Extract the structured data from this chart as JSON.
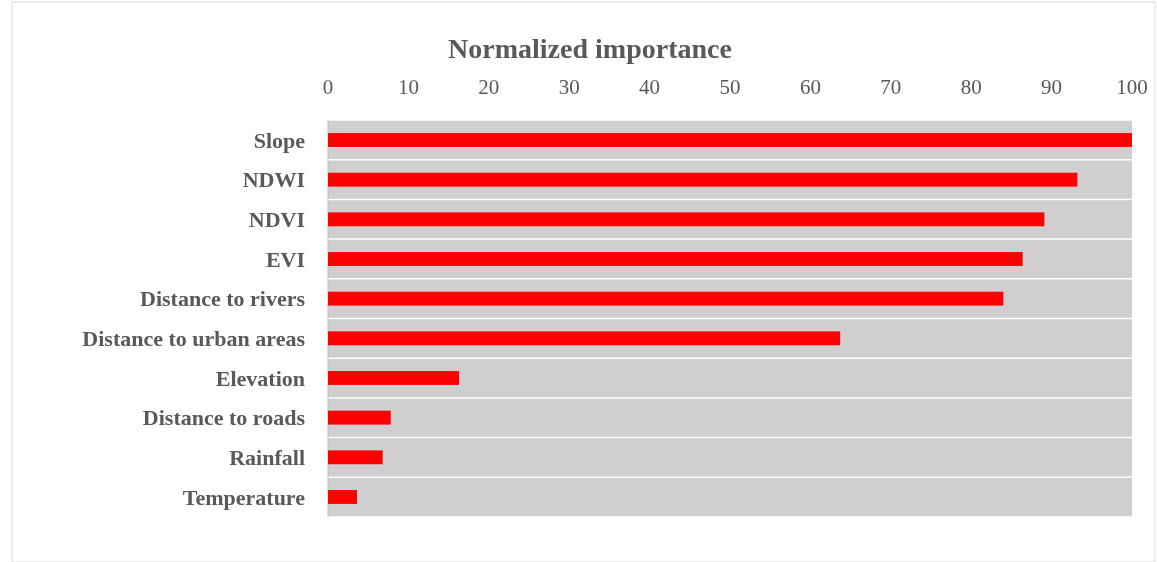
{
  "chart_data": {
    "type": "bar",
    "orientation": "horizontal",
    "title": "Normalized importance",
    "categories": [
      "Slope",
      "NDWI",
      "NDVI",
      "EVI",
      "Distance to rivers",
      "Distance to urban areas",
      "Elevation",
      "Distance to roads",
      "Rainfall",
      "Temperature"
    ],
    "values": [
      100,
      93.2,
      89.1,
      86.4,
      84.0,
      63.7,
      16.3,
      7.8,
      6.8,
      3.6
    ],
    "color": "#ff0000",
    "xlim": [
      0,
      100
    ],
    "xticks": [
      0,
      10,
      20,
      30,
      40,
      50,
      60,
      70,
      80,
      90,
      100
    ],
    "grid": "y"
  }
}
